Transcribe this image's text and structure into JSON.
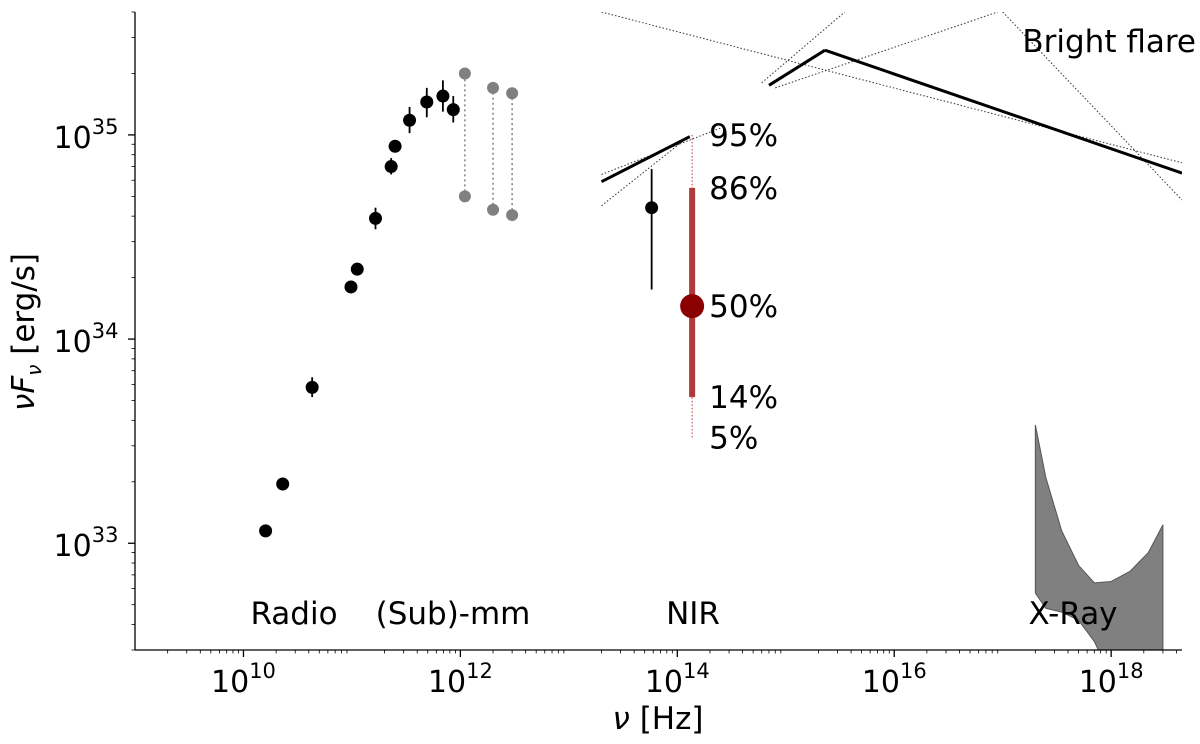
{
  "chart_data": {
    "type": "scatter",
    "x_scale": "log",
    "y_scale": "log",
    "xlim": [
      1000000000.0,
      4.5e+18
    ],
    "ylim": [
      3e+32,
      4e+35
    ],
    "xlabel": "ν [Hz]",
    "ylabel": "νF_ν [erg/s]",
    "grid": false,
    "x_ticks": [
      {
        "base": "10",
        "exp": "10",
        "value": 10000000000.0
      },
      {
        "base": "10",
        "exp": "12",
        "value": 1000000000000.0
      },
      {
        "base": "10",
        "exp": "14",
        "value": 100000000000000.0
      },
      {
        "base": "10",
        "exp": "16",
        "value": 1e+16
      },
      {
        "base": "10",
        "exp": "18",
        "value": 1e+18
      }
    ],
    "y_ticks": [
      {
        "base": "10",
        "exp": "33",
        "value": 1e+33
      },
      {
        "base": "10",
        "exp": "34",
        "value": 1e+34
      },
      {
        "base": "10",
        "exp": "35",
        "value": 1e+35
      }
    ],
    "radio_submm_points": [
      {
        "x": 16000000000.0,
        "y": 1.15e+33
      },
      {
        "x": 23000000000.0,
        "y": 1.95e+33
      },
      {
        "x": 43000000000.0,
        "y": 5.8e+33,
        "ylo": 5.2e+33,
        "yhi": 6.5e+33
      },
      {
        "x": 98000000000.0,
        "y": 1.8e+34
      },
      {
        "x": 112000000000.0,
        "y": 2.2e+34
      },
      {
        "x": 165000000000.0,
        "y": 3.9e+34,
        "ylo": 3.45e+34,
        "yhi": 4.4e+34
      },
      {
        "x": 230000000000.0,
        "y": 7e+34,
        "ylo": 6.4e+34,
        "yhi": 7.7e+34
      },
      {
        "x": 250000000000.0,
        "y": 8.8e+34
      },
      {
        "x": 340000000000.0,
        "y": 1.18e+35,
        "ylo": 1.02e+35,
        "yhi": 1.37e+35
      },
      {
        "x": 490000000000.0,
        "y": 1.45e+35,
        "ylo": 1.22e+35,
        "yhi": 1.7e+35
      },
      {
        "x": 690000000000.0,
        "y": 1.55e+35,
        "ylo": 1.3e+35,
        "yhi": 1.85e+35
      },
      {
        "x": 860000000000.0,
        "y": 1.33e+35,
        "ylo": 1.15e+35,
        "yhi": 1.55e+35
      }
    ],
    "submm_ranges": [
      {
        "x": 1100000000000.0,
        "ylow": 5e+34,
        "yhigh": 2e+35
      },
      {
        "x": 2000000000000.0,
        "ylow": 4.3e+34,
        "yhigh": 1.7e+35
      },
      {
        "x": 3000000000000.0,
        "ylow": 4.05e+34,
        "yhigh": 1.6e+35
      }
    ],
    "nir_point": {
      "x": 58000000000000.0,
      "y": 4.4e+34,
      "ylo": 1.75e+34,
      "yhi": 6.8e+34
    },
    "nir_percentiles": {
      "x": 137000000000000.0,
      "p5": 3.3e+33,
      "p14": 5.2e+33,
      "p50": 1.45e+34,
      "p86": 5.5e+34,
      "p95": 1e+35,
      "labels": {
        "p95": "95%",
        "p86": "86%",
        "p50": "50%",
        "p14": "14%",
        "p5": "5%"
      }
    },
    "flare_model": [
      {
        "x": 20000000000000.0,
        "y": 5.9e+34
      },
      {
        "x": 130000000000000.0,
        "y": 9.8e+34
      },
      {
        "x": 2300000000000000.0,
        "y": 2.6e+35
      },
      {
        "x": 4.5e+18,
        "y": 6.5e+34
      }
    ],
    "flare_model_mid": {
      "x1": 700000000000000.0,
      "y1": 1.75e+35
    },
    "flare_envelope_lines": [
      [
        {
          "x": 20000000000000.0,
          "y": 6.4e+34
        },
        {
          "x": 250000000000000.0,
          "y": 1.08e+35
        }
      ],
      [
        {
          "x": 20000000000000.0,
          "y": 4.5e+34
        },
        {
          "x": 130000000000000.0,
          "y": 9.9e+34
        }
      ],
      [
        {
          "x": 600000000000000.0,
          "y": 1.8e+35
        },
        {
          "x": 3500000000000000.0,
          "y": 4e+35
        }
      ],
      [
        {
          "x": 800000000000000.0,
          "y": 1.7e+35
        },
        {
          "x": 9e+16,
          "y": 4e+35
        }
      ],
      [
        {
          "x": 20000000000000.0,
          "y": 4e+35
        },
        {
          "x": 4.5e+18,
          "y": 7.3e+34
        }
      ],
      [
        {
          "x": 1e+17,
          "y": 4e+35
        },
        {
          "x": 4.5e+18,
          "y": 4.8e+34
        }
      ]
    ],
    "xray_band": {
      "x": [
        2e+17,
        2.5e+17,
        3.5e+17,
        5e+17,
        7e+17,
        1e+18,
        1.5e+18,
        2.2e+18,
        3e+18
      ],
      "upper": [
        3.8e+33,
        2.1e+33,
        1.15e+33,
        7.8e+32,
        6.4e+32,
        6.5e+32,
        7.3e+32,
        9e+32,
        1.23e+33
      ],
      "lower": [
        5.7e+32,
        4.8e+32,
        4.6e+32,
        4.2e+32,
        3.3e+32,
        2.2e+32,
        1e+32,
        1e+32,
        1e+32
      ]
    },
    "region_labels": {
      "radio": "Radio",
      "submm": "(Sub)-mm",
      "nir": "NIR",
      "xray": "X-Ray"
    },
    "annotation": "Bright flare",
    "colors": {
      "points": "#000000",
      "submm_range": "#808080",
      "nir_percentile": "#b03a3a",
      "nir_median": "#8b0000",
      "xray_band": "#808080",
      "flare_line": "#000000"
    }
  }
}
